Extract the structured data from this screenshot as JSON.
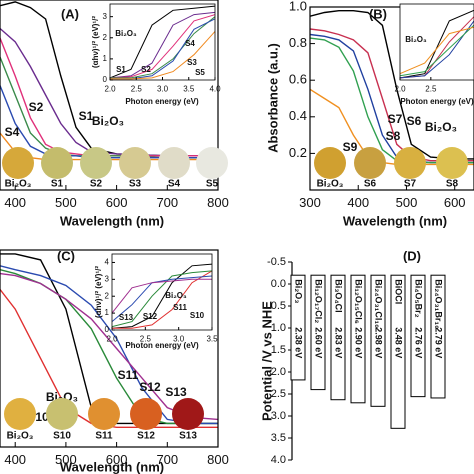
{
  "chart_data": [
    {
      "type": "line",
      "panel_label": "(A)",
      "xlabel": "Wavelength (nm)",
      "xlim": [
        370,
        800
      ],
      "xticks": [
        400,
        500,
        600,
        700,
        800
      ],
      "ylim": [
        0,
        1
      ],
      "x": [
        370,
        400,
        430,
        460,
        490,
        520,
        550,
        600,
        700,
        800
      ],
      "series": [
        {
          "name": "Bi₂O₃",
          "color": "#000000",
          "swatch": "#d6a83a",
          "values": [
            0.97,
            0.99,
            0.96,
            0.9,
            0.6,
            0.33,
            0.22,
            0.19,
            0.18,
            0.18
          ]
        },
        {
          "name": "S1",
          "color": "#6a2c8e",
          "swatch": "#c4bc6c",
          "values": [
            0.85,
            0.78,
            0.65,
            0.5,
            0.35,
            0.25,
            0.2,
            0.19,
            0.18,
            0.18
          ]
        },
        {
          "name": "S2",
          "color": "#e0307a",
          "swatch": "#c8c886",
          "values": [
            0.8,
            0.6,
            0.38,
            0.24,
            0.2,
            0.19,
            0.18,
            0.18,
            0.18,
            0.18
          ]
        },
        {
          "name": "S3",
          "color": "#3a8a4a",
          "swatch": "#d6ca92",
          "values": [
            0.7,
            0.5,
            0.3,
            0.22,
            0.19,
            0.18,
            0.18,
            0.18,
            0.17,
            0.17
          ]
        },
        {
          "name": "S4",
          "color": "#2a4ab0",
          "swatch": "#e0dcc8",
          "values": [
            0.55,
            0.35,
            0.23,
            0.19,
            0.18,
            0.18,
            0.17,
            0.17,
            0.17,
            0.17
          ]
        },
        {
          "name": "S5",
          "color": "#f08a20",
          "swatch": "#e8e8e0",
          "values": [
            0.3,
            0.2,
            0.17,
            0.16,
            0.16,
            0.16,
            0.16,
            0.16,
            0.16,
            0.16
          ]
        }
      ]
    },
    {
      "type": "line",
      "xlabel": "Photon energy (eV)",
      "ylabel": "(αhν)¹/² (eV)¹/²",
      "xlim": [
        2.0,
        4.0
      ],
      "xticks": [
        {
          "value": 2,
          "label": "2.0"
        },
        2.5,
        {
          "value": 3,
          "label": "3.0"
        },
        3.5,
        {
          "value": 4,
          "label": "4.0"
        }
      ],
      "ylim": [
        0,
        3.6
      ],
      "yticks": [
        0,
        1,
        2,
        3
      ],
      "x": [
        2.0,
        2.4,
        2.8,
        3.2,
        3.6,
        4.0
      ],
      "series": [
        {
          "name": "Bi₂O₃",
          "color": "#000000",
          "values": [
            0.1,
            0.5,
            2.6,
            3.3,
            3.4,
            3.5
          ]
        },
        {
          "name": "S1",
          "color": "#6a2c8e",
          "values": [
            0.1,
            0.2,
            0.8,
            2.6,
            3.1,
            3.2
          ]
        },
        {
          "name": "S2",
          "color": "#e0307a",
          "values": [
            0.1,
            0.15,
            0.5,
            1.6,
            2.8,
            3.1
          ]
        },
        {
          "name": "S3",
          "color": "#3a8a4a",
          "values": [
            0.1,
            0.1,
            0.3,
            1.0,
            2.2,
            3.0
          ]
        },
        {
          "name": "S4",
          "color": "#2a4ab0",
          "values": [
            0.05,
            0.05,
            0.2,
            0.9,
            2.4,
            2.9
          ]
        },
        {
          "name": "S5",
          "color": "#f08a20",
          "values": [
            0.05,
            0.05,
            0.1,
            0.4,
            1.2,
            2.3
          ]
        }
      ]
    },
    {
      "type": "line",
      "panel_label": "(B)",
      "xlabel": "Wavelength (nm)",
      "ylabel": "Absorbance (a.u.)",
      "xlim": [
        300,
        640
      ],
      "xticks": [
        300,
        400,
        500,
        600
      ],
      "ylim": [
        0,
        1
      ],
      "yticks": [
        0.2,
        0.4,
        0.6,
        0.8,
        {
          "value": 1,
          "label": "1.0"
        }
      ],
      "x": [
        300,
        330,
        360,
        390,
        420,
        450,
        480,
        510,
        550,
        600,
        640
      ],
      "series": [
        {
          "name": "Bi₂O₃",
          "color": "#000000",
          "swatch": "#d0a030",
          "values": [
            0.95,
            0.97,
            0.98,
            0.98,
            0.97,
            0.9,
            0.55,
            0.25,
            0.18,
            0.17,
            0.17
          ]
        },
        {
          "name": "S6",
          "color": "#c83050",
          "swatch": "#c8a040",
          "values": [
            0.88,
            0.87,
            0.85,
            0.82,
            0.75,
            0.5,
            0.25,
            0.18,
            0.16,
            0.16,
            0.16
          ]
        },
        {
          "name": "S7",
          "color": "#2040a0",
          "swatch": "#d8b040",
          "values": [
            0.85,
            0.84,
            0.82,
            0.76,
            0.55,
            0.3,
            0.18,
            0.16,
            0.15,
            0.15,
            0.15
          ]
        },
        {
          "name": "S8",
          "color": "#30a050",
          "swatch": "#dcc050",
          "values": [
            0.83,
            0.82,
            0.78,
            0.65,
            0.4,
            0.22,
            0.16,
            0.15,
            0.15,
            0.15,
            0.15
          ]
        },
        {
          "name": "S9",
          "color": "#f09020",
          "values": [
            0.55,
            0.5,
            0.45,
            0.3,
            0.18,
            0.15,
            0.14,
            0.14,
            0.14,
            0.14,
            0.14
          ]
        }
      ]
    },
    {
      "type": "line",
      "xlabel": "Photon energy (eV)",
      "xlim": [
        2.0,
        3.2
      ],
      "xticks": [
        {
          "value": 2,
          "label": "2.0"
        },
        2.5
      ],
      "ylim": [
        0,
        3.6
      ],
      "x": [
        2.0,
        2.4,
        2.8,
        3.2
      ],
      "series": [
        {
          "name": "Bi₂O₃",
          "color": "#000000",
          "values": [
            0.1,
            0.3,
            2.8,
            3.3
          ]
        },
        {
          "color": "#c83050",
          "values": [
            0.1,
            0.2,
            1.8,
            3.0
          ]
        },
        {
          "color": "#2040a0",
          "values": [
            0.1,
            0.2,
            1.2,
            2.8
          ]
        },
        {
          "color": "#30a050",
          "values": [
            0.2,
            0.4,
            1.5,
            2.6
          ]
        },
        {
          "color": "#f09020",
          "values": [
            0.3,
            0.8,
            2.2,
            2.5
          ]
        }
      ]
    },
    {
      "type": "line",
      "panel_label": "(C)",
      "xlabel": "Wavelength (nm)",
      "xlim": [
        370,
        800
      ],
      "xticks": [
        400,
        500,
        600,
        700,
        800
      ],
      "ylim": [
        0,
        1
      ],
      "x": [
        370,
        400,
        450,
        500,
        550,
        600,
        650,
        700,
        750,
        800
      ],
      "series": [
        {
          "name": "Bi₂O₃",
          "color": "#000000",
          "swatch": "#e0b040",
          "values": [
            0.98,
            0.98,
            0.95,
            0.7,
            0.2,
            0.12,
            0.12,
            0.12,
            0.12,
            0.12
          ]
        },
        {
          "name": "S10",
          "color": "#e03030",
          "swatch": "#c8c070",
          "values": [
            0.8,
            0.7,
            0.45,
            0.2,
            0.12,
            0.1,
            0.1,
            0.1,
            0.1,
            0.1
          ]
        },
        {
          "name": "S11",
          "color": "#2a8a3a",
          "swatch": "#e09030",
          "values": [
            0.9,
            0.88,
            0.83,
            0.75,
            0.6,
            0.35,
            0.15,
            0.12,
            0.12,
            0.12
          ]
        },
        {
          "name": "S12",
          "color": "#2a4ab0",
          "swatch": "#d86020",
          "values": [
            0.92,
            0.9,
            0.87,
            0.82,
            0.72,
            0.55,
            0.3,
            0.14,
            0.12,
            0.12
          ]
        },
        {
          "name": "S13",
          "color": "#a03090",
          "swatch": "#a01818",
          "values": [
            0.88,
            0.87,
            0.83,
            0.75,
            0.65,
            0.5,
            0.35,
            0.2,
            0.15,
            0.14
          ]
        }
      ]
    },
    {
      "type": "line",
      "xlabel": "Photon energy (eV)",
      "ylabel": "(αhν)¹/² (eV)¹/²",
      "xlim": [
        2.0,
        3.5
      ],
      "xticks": [
        {
          "value": 2,
          "label": "2.0"
        },
        2.5,
        {
          "value": 3,
          "label": "3.0"
        },
        3.5
      ],
      "ylim": [
        0,
        4.5
      ],
      "yticks": [
        0,
        1,
        2,
        3,
        4
      ],
      "x": [
        2.0,
        2.3,
        2.6,
        2.9,
        3.2,
        3.5
      ],
      "series": [
        {
          "name": "Bi₂O₃",
          "color": "#000000",
          "values": [
            0.1,
            0.2,
            0.8,
            2.8,
            3.8,
            3.9
          ]
        },
        {
          "name": "S10",
          "color": "#e03030",
          "values": [
            0.1,
            0.1,
            0.3,
            1.2,
            2.8,
            3.5
          ]
        },
        {
          "name": "S11",
          "color": "#2a8a3a",
          "values": [
            0.2,
            0.5,
            2.0,
            3.2,
            3.4,
            3.5
          ]
        },
        {
          "name": "S12",
          "color": "#2a4ab0",
          "values": [
            0.5,
            1.5,
            2.8,
            3.0,
            3.1,
            3.2
          ]
        },
        {
          "name": "S13",
          "color": "#a03090",
          "values": [
            1.0,
            2.5,
            2.8,
            2.9,
            3.0,
            3.0
          ]
        }
      ]
    },
    {
      "type": "floating-bar",
      "panel_label": "(D)",
      "ylabel": "Potential /V vs NHE",
      "y_inverted": true,
      "ylim": [
        -0.5,
        4.0
      ],
      "yticks": [
        -0.5,
        {
          "value": 0,
          "label": "0.0"
        },
        0.5,
        {
          "value": 1,
          "label": "1.0"
        },
        1.5,
        {
          "value": 2,
          "label": "2.0"
        },
        2.5,
        {
          "value": 3,
          "label": "3.0"
        },
        3.5,
        {
          "value": 4,
          "label": "4.0"
        }
      ],
      "categories": [
        "Bi₂O₃",
        "Bi₁₂O₁₇Cl₂",
        "Bi₃O₄Cl",
        "Bi₁₂O₁₅Cl₆",
        "Bi₂₄O₃₁Cl₁₀",
        "BiOCl",
        "Bi₄O₅Br₂",
        "Bi₂₄O₃₁Br₁₀"
      ],
      "starts": [
        -0.2,
        -0.2,
        -0.2,
        -0.2,
        -0.2,
        -0.2,
        -0.2,
        -0.2
      ],
      "gaps": [
        2.38,
        2.6,
        2.83,
        2.9,
        2.98,
        3.48,
        2.76,
        2.79
      ],
      "value_labels": [
        "2.38 eV",
        "2.60 eV",
        "2.83 eV",
        "2.90 eV",
        "2.98 eV",
        "3.48 eV",
        "2.76 eV",
        "2.79 eV"
      ],
      "color": "#ffffff"
    }
  ]
}
